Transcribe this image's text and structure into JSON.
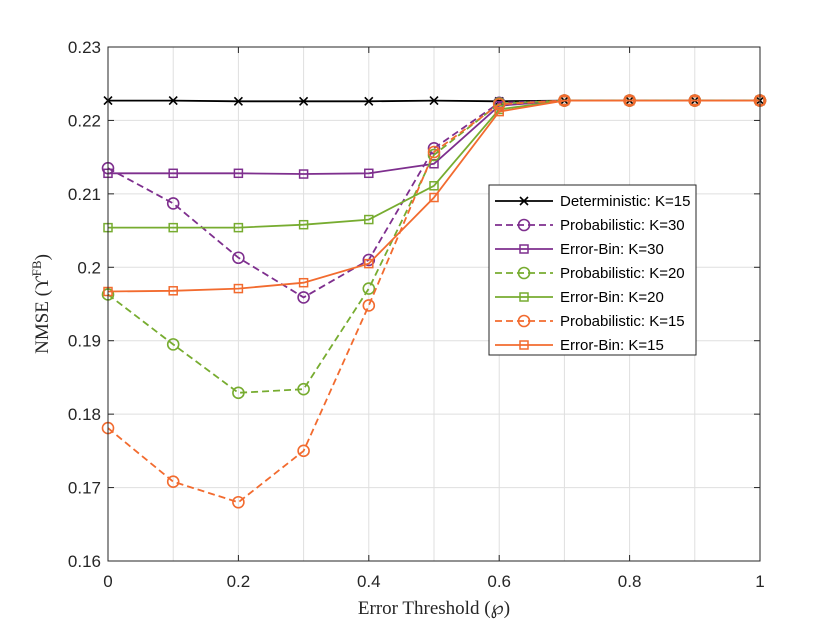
{
  "chart_data": {
    "type": "line",
    "title": "",
    "xlabel": "Error Threshold (℘)",
    "ylabel": "NMSE (ϒ",
    "ylabel_superscript": "FB",
    "ylabel_close": ")",
    "xlim": [
      0,
      1
    ],
    "ylim": [
      0.16,
      0.23
    ],
    "x_ticks": [
      0,
      0.2,
      0.4,
      0.6,
      0.8,
      1
    ],
    "x_tick_labels": [
      "0",
      "0.2",
      "0.4",
      "0.6",
      "0.8",
      "1"
    ],
    "y_ticks": [
      0.16,
      0.17,
      0.18,
      0.19,
      0.2,
      0.21,
      0.22,
      0.23
    ],
    "y_tick_labels": [
      "0.16",
      "0.17",
      "0.18",
      "0.19",
      "0.2",
      "0.21",
      "0.22",
      "0.23"
    ],
    "x_grid": [
      0,
      0.1,
      0.2,
      0.3,
      0.4,
      0.5,
      0.6,
      0.7,
      0.8,
      0.9,
      1
    ],
    "grid": true,
    "legend_position": "center-right",
    "x": [
      0,
      0.1,
      0.2,
      0.3,
      0.4,
      0.5,
      0.6,
      0.7,
      0.8,
      0.9,
      1
    ],
    "series": [
      {
        "name": "Deterministic: K=15",
        "color": "#000000",
        "dash": "solid",
        "marker": "x",
        "values": [
          0.2227,
          0.2227,
          0.2226,
          0.2226,
          0.2226,
          0.2227,
          0.2226,
          0.2227,
          0.2227,
          0.2227,
          0.2227
        ]
      },
      {
        "name": "Probabilistic: K=30",
        "color": "#7E2F8E",
        "dash": "dashed",
        "marker": "circle",
        "values": [
          0.2135,
          0.2087,
          0.2013,
          0.1959,
          0.201,
          0.2162,
          0.2224,
          0.2227,
          0.2227,
          0.2227,
          0.2227
        ]
      },
      {
        "name": "Error-Bin: K=30",
        "color": "#7E2F8E",
        "dash": "solid",
        "marker": "square",
        "values": [
          0.2128,
          0.2128,
          0.2128,
          0.2127,
          0.2128,
          0.2141,
          0.222,
          0.2227,
          0.2227,
          0.2227,
          0.2227
        ]
      },
      {
        "name": "Probabilistic: K=20",
        "color": "#77AC30",
        "dash": "dashed",
        "marker": "circle",
        "values": [
          0.1963,
          0.1895,
          0.1829,
          0.1834,
          0.1971,
          0.2153,
          0.2223,
          0.2227,
          0.2227,
          0.2227,
          0.2227
        ]
      },
      {
        "name": "Error-Bin: K=20",
        "color": "#77AC30",
        "dash": "solid",
        "marker": "square",
        "values": [
          0.2054,
          0.2054,
          0.2054,
          0.2058,
          0.2065,
          0.2111,
          0.2215,
          0.2227,
          0.2227,
          0.2227,
          0.2227
        ]
      },
      {
        "name": "Probabilistic: K=15",
        "color": "#F26B2F",
        "dash": "dashed",
        "marker": "circle",
        "values": [
          0.1781,
          0.1708,
          0.168,
          0.175,
          0.1948,
          0.2157,
          0.2222,
          0.2227,
          0.2227,
          0.2227,
          0.2227
        ]
      },
      {
        "name": "Error-Bin: K=15",
        "color": "#F26B2F",
        "dash": "solid",
        "marker": "square",
        "values": [
          0.1967,
          0.1968,
          0.1971,
          0.1979,
          0.2005,
          0.2095,
          0.2212,
          0.2227,
          0.2227,
          0.2227,
          0.2227
        ]
      }
    ]
  }
}
